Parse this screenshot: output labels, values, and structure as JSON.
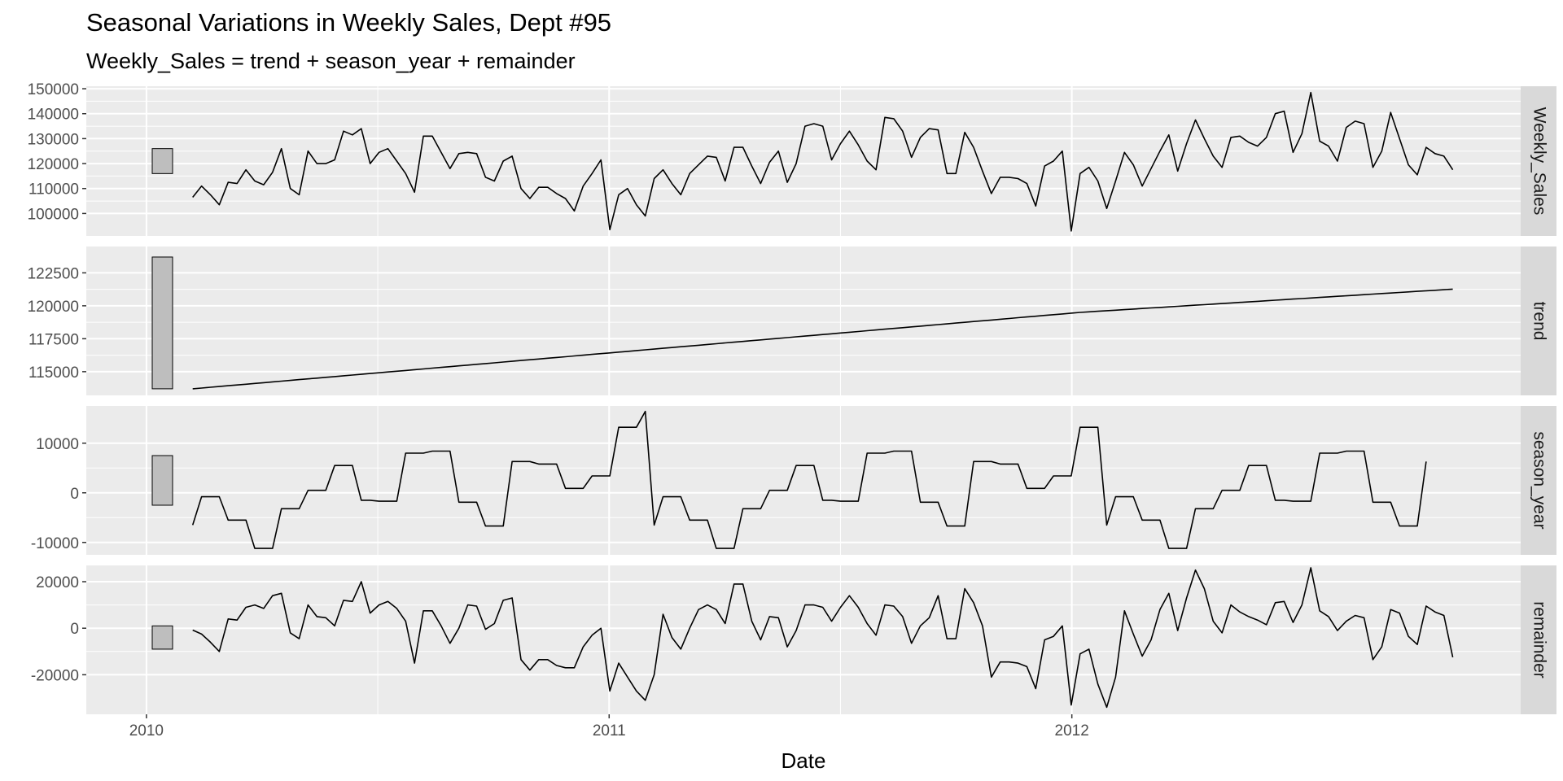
{
  "chart_data": {
    "type": "line",
    "title": "Seasonal Variations in Weekly Sales, Dept #95",
    "subtitle": "Weekly_Sales = trend + season_year + remainder",
    "xlabel": "Date",
    "x_ticks": [
      {
        "value": 2010,
        "label": "2010"
      },
      {
        "value": 2011,
        "label": "2011"
      },
      {
        "value": 2012,
        "label": "2012"
      }
    ],
    "xlim": [
      2009.87,
      2012.97
    ],
    "x_start": 2010.1,
    "x_step": 0.019178,
    "grid": true,
    "legend": "none",
    "line_color": "#000000",
    "panel_bg": "#ebebeb",
    "strip_bg": "#d9d9d9",
    "bar_fill": "#bebebe",
    "panels": [
      {
        "name": "Weekly_Sales",
        "ylim": [
          91000,
          151000
        ],
        "y_ticks": [
          {
            "value": 100000,
            "label": "100000"
          },
          {
            "value": 110000,
            "label": "110000"
          },
          {
            "value": 120000,
            "label": "120000"
          },
          {
            "value": 130000,
            "label": "130000"
          },
          {
            "value": 140000,
            "label": "140000"
          },
          {
            "value": 150000,
            "label": "150000"
          }
        ],
        "scale_bar": [
          116000,
          126000
        ],
        "values": [
          106500,
          111000,
          107500,
          103500,
          112500,
          112000,
          117500,
          113000,
          111500,
          116500,
          126000,
          110000,
          107500,
          125000,
          120000,
          120000,
          121500,
          133000,
          131500,
          134000,
          120000,
          124500,
          126000,
          121000,
          116000,
          108500,
          131000,
          131000,
          124500,
          118000,
          124000,
          124500,
          124000,
          114500,
          113000,
          121000,
          123000,
          110000,
          106000,
          110500,
          110500,
          108000,
          106000,
          101000,
          111000,
          116000,
          121500,
          93500,
          107500,
          110000,
          103500,
          99000,
          114000,
          117500,
          112000,
          107500,
          116000,
          119500,
          123000,
          122500,
          113000,
          126500,
          126500,
          119000,
          112000,
          120500,
          125000,
          112500,
          120000,
          135000,
          136000,
          135000,
          121500,
          128000,
          133000,
          127500,
          121000,
          117500,
          138500,
          138000,
          133000,
          122500,
          130500,
          134000,
          133500,
          116000,
          116000,
          132500,
          126500,
          117000,
          108000,
          114500,
          114500,
          114000,
          112000,
          103000,
          119000,
          121000,
          125000,
          93000,
          116000,
          118500,
          113000,
          102000,
          113000,
          124500,
          119500,
          111000,
          118000,
          125000,
          131500,
          117000,
          128000,
          137500,
          130000,
          123000,
          118500,
          130500,
          131000,
          128500,
          127000,
          130500,
          140000,
          141000,
          124500,
          132000,
          148500,
          129000,
          127000,
          121000,
          134500,
          137000,
          136000,
          118500,
          125000,
          140500,
          130000,
          119500,
          115500,
          126500,
          124000,
          123000,
          117500
        ]
      },
      {
        "name": "trend",
        "ylim": [
          113200,
          124500
        ],
        "y_ticks": [
          {
            "value": 115000,
            "label": "115000"
          },
          {
            "value": 117500,
            "label": "117500"
          },
          {
            "value": 120000,
            "label": "120000"
          },
          {
            "value": 122500,
            "label": "122500"
          }
        ],
        "scale_bar": [
          113700,
          123700
        ],
        "values": [
          113700,
          113758,
          113816,
          113874,
          113932,
          113990,
          114048,
          114106,
          114164,
          114222,
          114280,
          114338,
          114396,
          114454,
          114512,
          114570,
          114628,
          114686,
          114744,
          114802,
          114860,
          114918,
          114976,
          115034,
          115092,
          115150,
          115208,
          115266,
          115324,
          115382,
          115440,
          115498,
          115556,
          115614,
          115672,
          115730,
          115788,
          115846,
          115904,
          115962,
          116020,
          116078,
          116136,
          116194,
          116252,
          116310,
          116368,
          116426,
          116484,
          116542,
          116600,
          116658,
          116716,
          116774,
          116832,
          116890,
          116948,
          117006,
          117064,
          117122,
          117180,
          117238,
          117296,
          117354,
          117412,
          117470,
          117528,
          117586,
          117644,
          117702,
          117760,
          117818,
          117876,
          117934,
          117992,
          118050,
          118108,
          118166,
          118224,
          118282,
          118340,
          118398,
          118456,
          118514,
          118572,
          118630,
          118688,
          118746,
          118804,
          118862,
          118920,
          118978,
          119036,
          119094,
          119152,
          119210,
          119268,
          119326,
          119384,
          119442,
          119500,
          119542,
          119584,
          119626,
          119668,
          119710,
          119752,
          119794,
          119836,
          119878,
          119920,
          119962,
          120004,
          120046,
          120088,
          120130,
          120172,
          120214,
          120256,
          120298,
          120340,
          120382,
          120424,
          120466,
          120508,
          120550,
          120592,
          120634,
          120676,
          120718,
          120760,
          120802,
          120844,
          120886,
          120928,
          120970,
          121012,
          121054,
          121096,
          121138,
          121180,
          121222,
          121264
        ]
      },
      {
        "name": "season_year",
        "ylim": [
          -12500,
          17500
        ],
        "y_ticks": [
          {
            "value": -10000,
            "label": "-10000"
          },
          {
            "value": 0,
            "label": "0"
          },
          {
            "value": 10000,
            "label": "10000"
          }
        ],
        "scale_bar": [
          -2500,
          7500
        ],
        "values": [
          -6500,
          -800,
          -800,
          -800,
          -5500,
          -5500,
          -5500,
          -11200,
          -11200,
          -11200,
          -3200,
          -3200,
          -3200,
          500,
          500,
          500,
          5500,
          5500,
          5500,
          -1500,
          -1500,
          -1700,
          -1700,
          -1700,
          8000,
          8000,
          8000,
          8400,
          8400,
          8400,
          -1900,
          -1900,
          -1900,
          -6700,
          -6700,
          -6700,
          6300,
          6300,
          6300,
          5800,
          5800,
          5800,
          900,
          900,
          900,
          3400,
          3400,
          3400,
          13200,
          13200,
          13200,
          16400,
          -6500,
          -800,
          -800,
          -800,
          -5500,
          -5500,
          -5500,
          -11200,
          -11200,
          -11200,
          -3200,
          -3200,
          -3200,
          500,
          500,
          500,
          5500,
          5500,
          5500,
          -1500,
          -1500,
          -1700,
          -1700,
          -1700,
          8000,
          8000,
          8000,
          8400,
          8400,
          8400,
          -1900,
          -1900,
          -1900,
          -6700,
          -6700,
          -6700,
          6300,
          6300,
          6300,
          5800,
          5800,
          5800,
          900,
          900,
          900,
          3400,
          3400,
          3400,
          13200,
          13200,
          13200,
          -6500,
          -800,
          -800,
          -800,
          -5500,
          -5500,
          -5500,
          -11200,
          -11200,
          -11200,
          -3200,
          -3200,
          -3200,
          500,
          500,
          500,
          5500,
          5500,
          5500,
          -1500,
          -1500,
          -1700,
          -1700,
          -1700,
          8000,
          8000,
          8000,
          8400,
          8400,
          8400,
          -1900,
          -1900,
          -1900,
          -6700,
          -6700,
          -6700,
          6300
        ]
      },
      {
        "name": "remainder",
        "ylim": [
          -37000,
          27000
        ],
        "y_ticks": [
          {
            "value": -20000,
            "label": "-20000"
          },
          {
            "value": 0,
            "label": "0"
          },
          {
            "value": 20000,
            "label": "20000"
          }
        ],
        "scale_bar": [
          -9000,
          1000
        ],
        "values": [
          -800,
          -2500,
          -6000,
          -10000,
          4000,
          3500,
          9000,
          10000,
          8500,
          14000,
          15000,
          -2000,
          -4500,
          10000,
          5000,
          4500,
          1000,
          12000,
          11500,
          20000,
          6500,
          10000,
          11500,
          8500,
          3000,
          -15000,
          7500,
          7500,
          1000,
          -6500,
          0,
          10000,
          9500,
          -500,
          2000,
          12000,
          13000,
          -13500,
          -18000,
          -13500,
          -13500,
          -16000,
          -17000,
          -17000,
          -8000,
          -3000,
          0,
          -27000,
          -15000,
          -21000,
          -27000,
          -31000,
          -20000,
          6000,
          -4000,
          -9000,
          0,
          8000,
          10000,
          8000,
          2000,
          19000,
          19000,
          3000,
          -5000,
          5000,
          4500,
          -8000,
          -1000,
          10000,
          10000,
          9000,
          3000,
          9000,
          14000,
          9000,
          2000,
          -3000,
          10000,
          9500,
          5000,
          -6500,
          1000,
          4500,
          14000,
          -4500,
          -4500,
          17000,
          11000,
          1000,
          -21000,
          -14500,
          -14500,
          -15000,
          -16500,
          -26000,
          -5000,
          -3500,
          1000,
          -33000,
          -11000,
          -9000,
          -24000,
          -34000,
          -21000,
          7500,
          -2500,
          -12000,
          -5000,
          8000,
          15000,
          -1000,
          13000,
          25000,
          17000,
          3000,
          -2000,
          10000,
          7000,
          5000,
          3500,
          1500,
          11000,
          11500,
          2500,
          10000,
          26000,
          7500,
          5000,
          -1000,
          3000,
          5500,
          4500,
          -13500,
          -8000,
          8000,
          6500,
          -3500,
          -7000,
          9500,
          7000,
          5500,
          -12500
        ]
      }
    ]
  }
}
